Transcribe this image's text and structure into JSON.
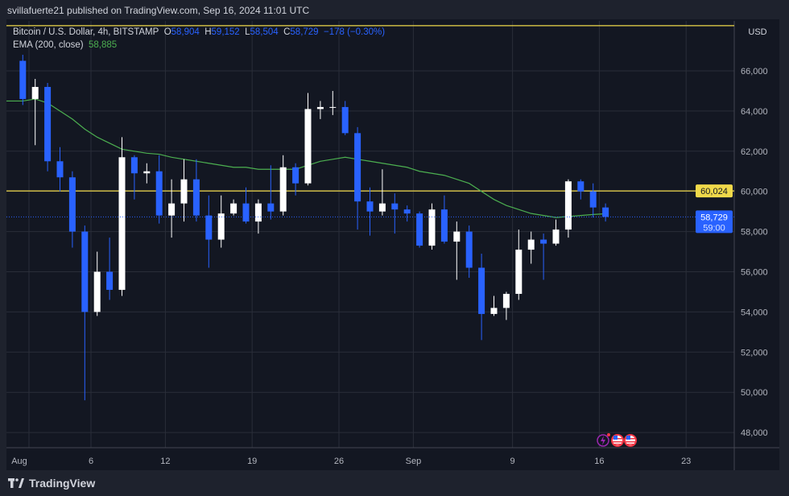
{
  "header": {
    "published": "svillafuerte21 published on TradingView.com, Sep 16, 2024 11:01 UTC"
  },
  "legend": {
    "symbol": "Bitcoin / U.S. Dollar, 4h, BITSTAMP",
    "o_label": "O",
    "o": "58,904",
    "h_label": "H",
    "h": "59,152",
    "l_label": "L",
    "l": "58,504",
    "c_label": "C",
    "c": "58,729",
    "change": "−178 (−0.30%)",
    "ema_label": "EMA (200, close)",
    "ema_value": "58,885"
  },
  "currency": "USD",
  "footer": {
    "brand": "TradingView"
  },
  "colors": {
    "up": "#ffffff",
    "down": "#2962ff",
    "ema": "#4caf50",
    "hline": "#f0d94a",
    "bg": "#131722",
    "grid": "#2a2e39"
  },
  "chart_data": {
    "type": "candlestick",
    "interval_note": "daily approximation of 4h candles",
    "ylim": [
      47000,
      68400
    ],
    "y_ticks": [
      "48,000",
      "50,000",
      "52,000",
      "54,000",
      "56,000",
      "58,000",
      "60,000",
      "62,000",
      "64,000",
      "66,000"
    ],
    "y_tick_values": [
      48000,
      50000,
      52000,
      54000,
      56000,
      58000,
      60000,
      62000,
      64000,
      66000
    ],
    "x_ticks": [
      {
        "label": "Aug",
        "date": "Aug 1"
      },
      {
        "label": "6",
        "date": "Aug 6"
      },
      {
        "label": "12",
        "date": "Aug 12"
      },
      {
        "label": "19",
        "date": "Aug 19"
      },
      {
        "label": "26",
        "date": "Aug 26"
      },
      {
        "label": "Sep",
        "date": "Sep 1"
      },
      {
        "label": "9",
        "date": "Sep 9"
      },
      {
        "label": "16",
        "date": "Sep 16"
      },
      {
        "label": "23",
        "date": "Sep 23"
      }
    ],
    "horizontal_lines": [
      {
        "value": 60024,
        "label": "60,024"
      },
      {
        "value": 68250
      }
    ],
    "last_price": {
      "value": 58729,
      "label": "58,729",
      "countdown": "59:00"
    },
    "events": [
      "lightning-event-icon",
      "us-flag-event-icon",
      "us-flag-event-icon"
    ],
    "candles": [
      [
        "Jul 31",
        66500,
        66800,
        64300,
        64600
      ],
      [
        "Aug 1",
        64600,
        65600,
        62300,
        65200
      ],
      [
        "Aug 2",
        65200,
        65400,
        61000,
        61500
      ],
      [
        "Aug 3",
        61500,
        62200,
        60000,
        60700
      ],
      [
        "Aug 4",
        60700,
        61000,
        57200,
        58000
      ],
      [
        "Aug 5",
        58000,
        58300,
        49600,
        54000
      ],
      [
        "Aug 6",
        54000,
        57000,
        53800,
        56000
      ],
      [
        "Aug 7",
        56000,
        57700,
        54600,
        55100
      ],
      [
        "Aug 8",
        55100,
        62700,
        54800,
        61700
      ],
      [
        "Aug 9",
        61700,
        61800,
        59600,
        60900
      ],
      [
        "Aug 10",
        60900,
        61400,
        60400,
        61000
      ],
      [
        "Aug 11",
        61000,
        61800,
        58400,
        58800
      ],
      [
        "Aug 12",
        58800,
        60600,
        57700,
        59400
      ],
      [
        "Aug 13",
        59400,
        61600,
        58500,
        60600
      ],
      [
        "Aug 14",
        60600,
        61600,
        58500,
        58800
      ],
      [
        "Aug 15",
        58800,
        59800,
        56200,
        57600
      ],
      [
        "Aug 16",
        57600,
        59800,
        57200,
        58900
      ],
      [
        "Aug 17",
        58900,
        59600,
        58800,
        59400
      ],
      [
        "Aug 18",
        59400,
        60200,
        58400,
        58500
      ],
      [
        "Aug 19",
        58500,
        59600,
        57900,
        59400
      ],
      [
        "Aug 20",
        59400,
        61300,
        58600,
        59000
      ],
      [
        "Aug 21",
        59000,
        61800,
        58800,
        61200
      ],
      [
        "Aug 22",
        61200,
        61400,
        59800,
        60400
      ],
      [
        "Aug 23",
        60400,
        64900,
        60300,
        64100
      ],
      [
        "Aug 24",
        64100,
        64500,
        63600,
        64200
      ],
      [
        "Aug 25",
        64200,
        65000,
        63800,
        64200
      ],
      [
        "Aug 26",
        64200,
        64500,
        62800,
        62900
      ],
      [
        "Aug 27",
        62900,
        63200,
        58100,
        59500
      ],
      [
        "Aug 28",
        59500,
        60200,
        57800,
        59000
      ],
      [
        "Aug 29",
        59000,
        61100,
        58800,
        59400
      ],
      [
        "Aug 30",
        59400,
        59900,
        57900,
        59100
      ],
      [
        "Aug 31",
        59100,
        59300,
        58500,
        58900
      ],
      [
        "Sep 1",
        58900,
        59000,
        57200,
        57300
      ],
      [
        "Sep 2",
        57300,
        59400,
        57100,
        59100
      ],
      [
        "Sep 3",
        59100,
        59800,
        57400,
        57500
      ],
      [
        "Sep 4",
        57500,
        58500,
        55600,
        58000
      ],
      [
        "Sep 5",
        58000,
        58300,
        55700,
        56200
      ],
      [
        "Sep 6",
        56200,
        56900,
        52600,
        53900
      ],
      [
        "Sep 7",
        53900,
        54800,
        53800,
        54200
      ],
      [
        "Sep 8",
        54200,
        55000,
        53600,
        54900
      ],
      [
        "Sep 9",
        54900,
        58100,
        54600,
        57100
      ],
      [
        "Sep 10",
        57100,
        58000,
        56400,
        57600
      ],
      [
        "Sep 11",
        57600,
        57900,
        55600,
        57400
      ],
      [
        "Sep 12",
        57400,
        58600,
        57300,
        58100
      ],
      [
        "Sep 13",
        58100,
        60600,
        57700,
        60500
      ],
      [
        "Sep 14",
        60500,
        60600,
        59600,
        60000
      ],
      [
        "Sep 15",
        60000,
        60400,
        58700,
        59200
      ],
      [
        "Sep 16",
        59200,
        59400,
        58500,
        58729
      ]
    ],
    "ema_200": [
      64500,
      64600,
      64400,
      64000,
      63600,
      63100,
      62700,
      62400,
      62100,
      62000,
      61900,
      61850,
      61700,
      61600,
      61500,
      61400,
      61300,
      61200,
      61200,
      61100,
      61100,
      61100,
      61100,
      61300,
      61500,
      61600,
      61700,
      61600,
      61500,
      61400,
      61300,
      61200,
      61000,
      60900,
      60800,
      60600,
      60400,
      60000,
      59600,
      59300,
      59100,
      58900,
      58800,
      58700,
      58750,
      58800,
      58850,
      58885
    ]
  }
}
